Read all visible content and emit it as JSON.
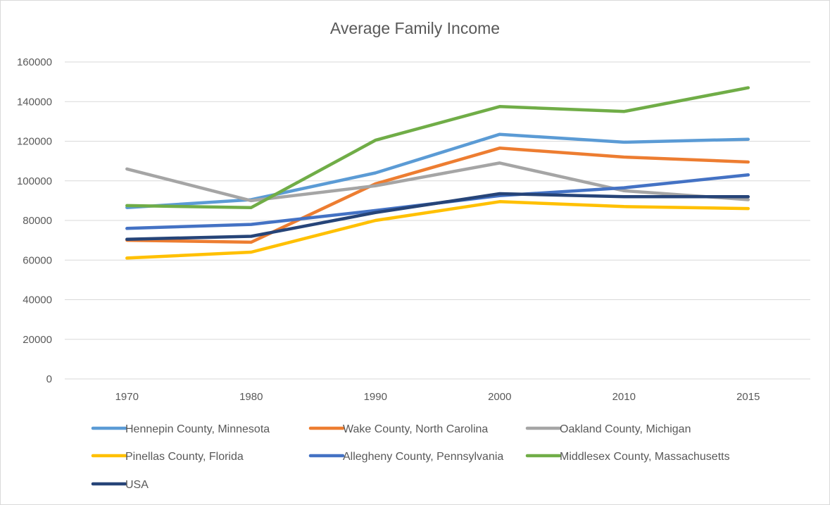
{
  "chart_data": {
    "type": "line",
    "title": "Average Family Income",
    "xlabel": "",
    "ylabel": "",
    "categories": [
      "1970",
      "1980",
      "1990",
      "2000",
      "2010",
      "2015"
    ],
    "ylim": [
      0,
      160000
    ],
    "yticks": [
      0,
      20000,
      40000,
      60000,
      80000,
      100000,
      120000,
      140000,
      160000
    ],
    "grid": "horizontal",
    "legend_position": "bottom",
    "series": [
      {
        "name": "Hennepin County, Minnesota",
        "color": "#5b9bd5",
        "values": [
          86500,
          90500,
          104000,
          123500,
          119500,
          121000
        ]
      },
      {
        "name": "Wake County, North Carolina",
        "color": "#ed7d31",
        "values": [
          70000,
          69000,
          98500,
          116500,
          112000,
          109500
        ]
      },
      {
        "name": "Oakland County, Michigan",
        "color": "#a5a5a5",
        "values": [
          106000,
          90000,
          97500,
          109000,
          95000,
          90500
        ]
      },
      {
        "name": "Pinellas County, Florida",
        "color": "#ffc000",
        "values": [
          61000,
          64000,
          80000,
          89500,
          87000,
          86000
        ]
      },
      {
        "name": "Allegheny County, Pennsylvania",
        "color": "#4472c4",
        "values": [
          76000,
          78000,
          85000,
          92500,
          96500,
          103000
        ]
      },
      {
        "name": "Middlesex County, Massachusetts",
        "color": "#70ad47",
        "values": [
          87500,
          86500,
          120500,
          137500,
          135000,
          147000
        ]
      },
      {
        "name": "USA",
        "color": "#264478",
        "values": [
          70500,
          72000,
          84000,
          93500,
          92000,
          92000
        ]
      }
    ]
  }
}
